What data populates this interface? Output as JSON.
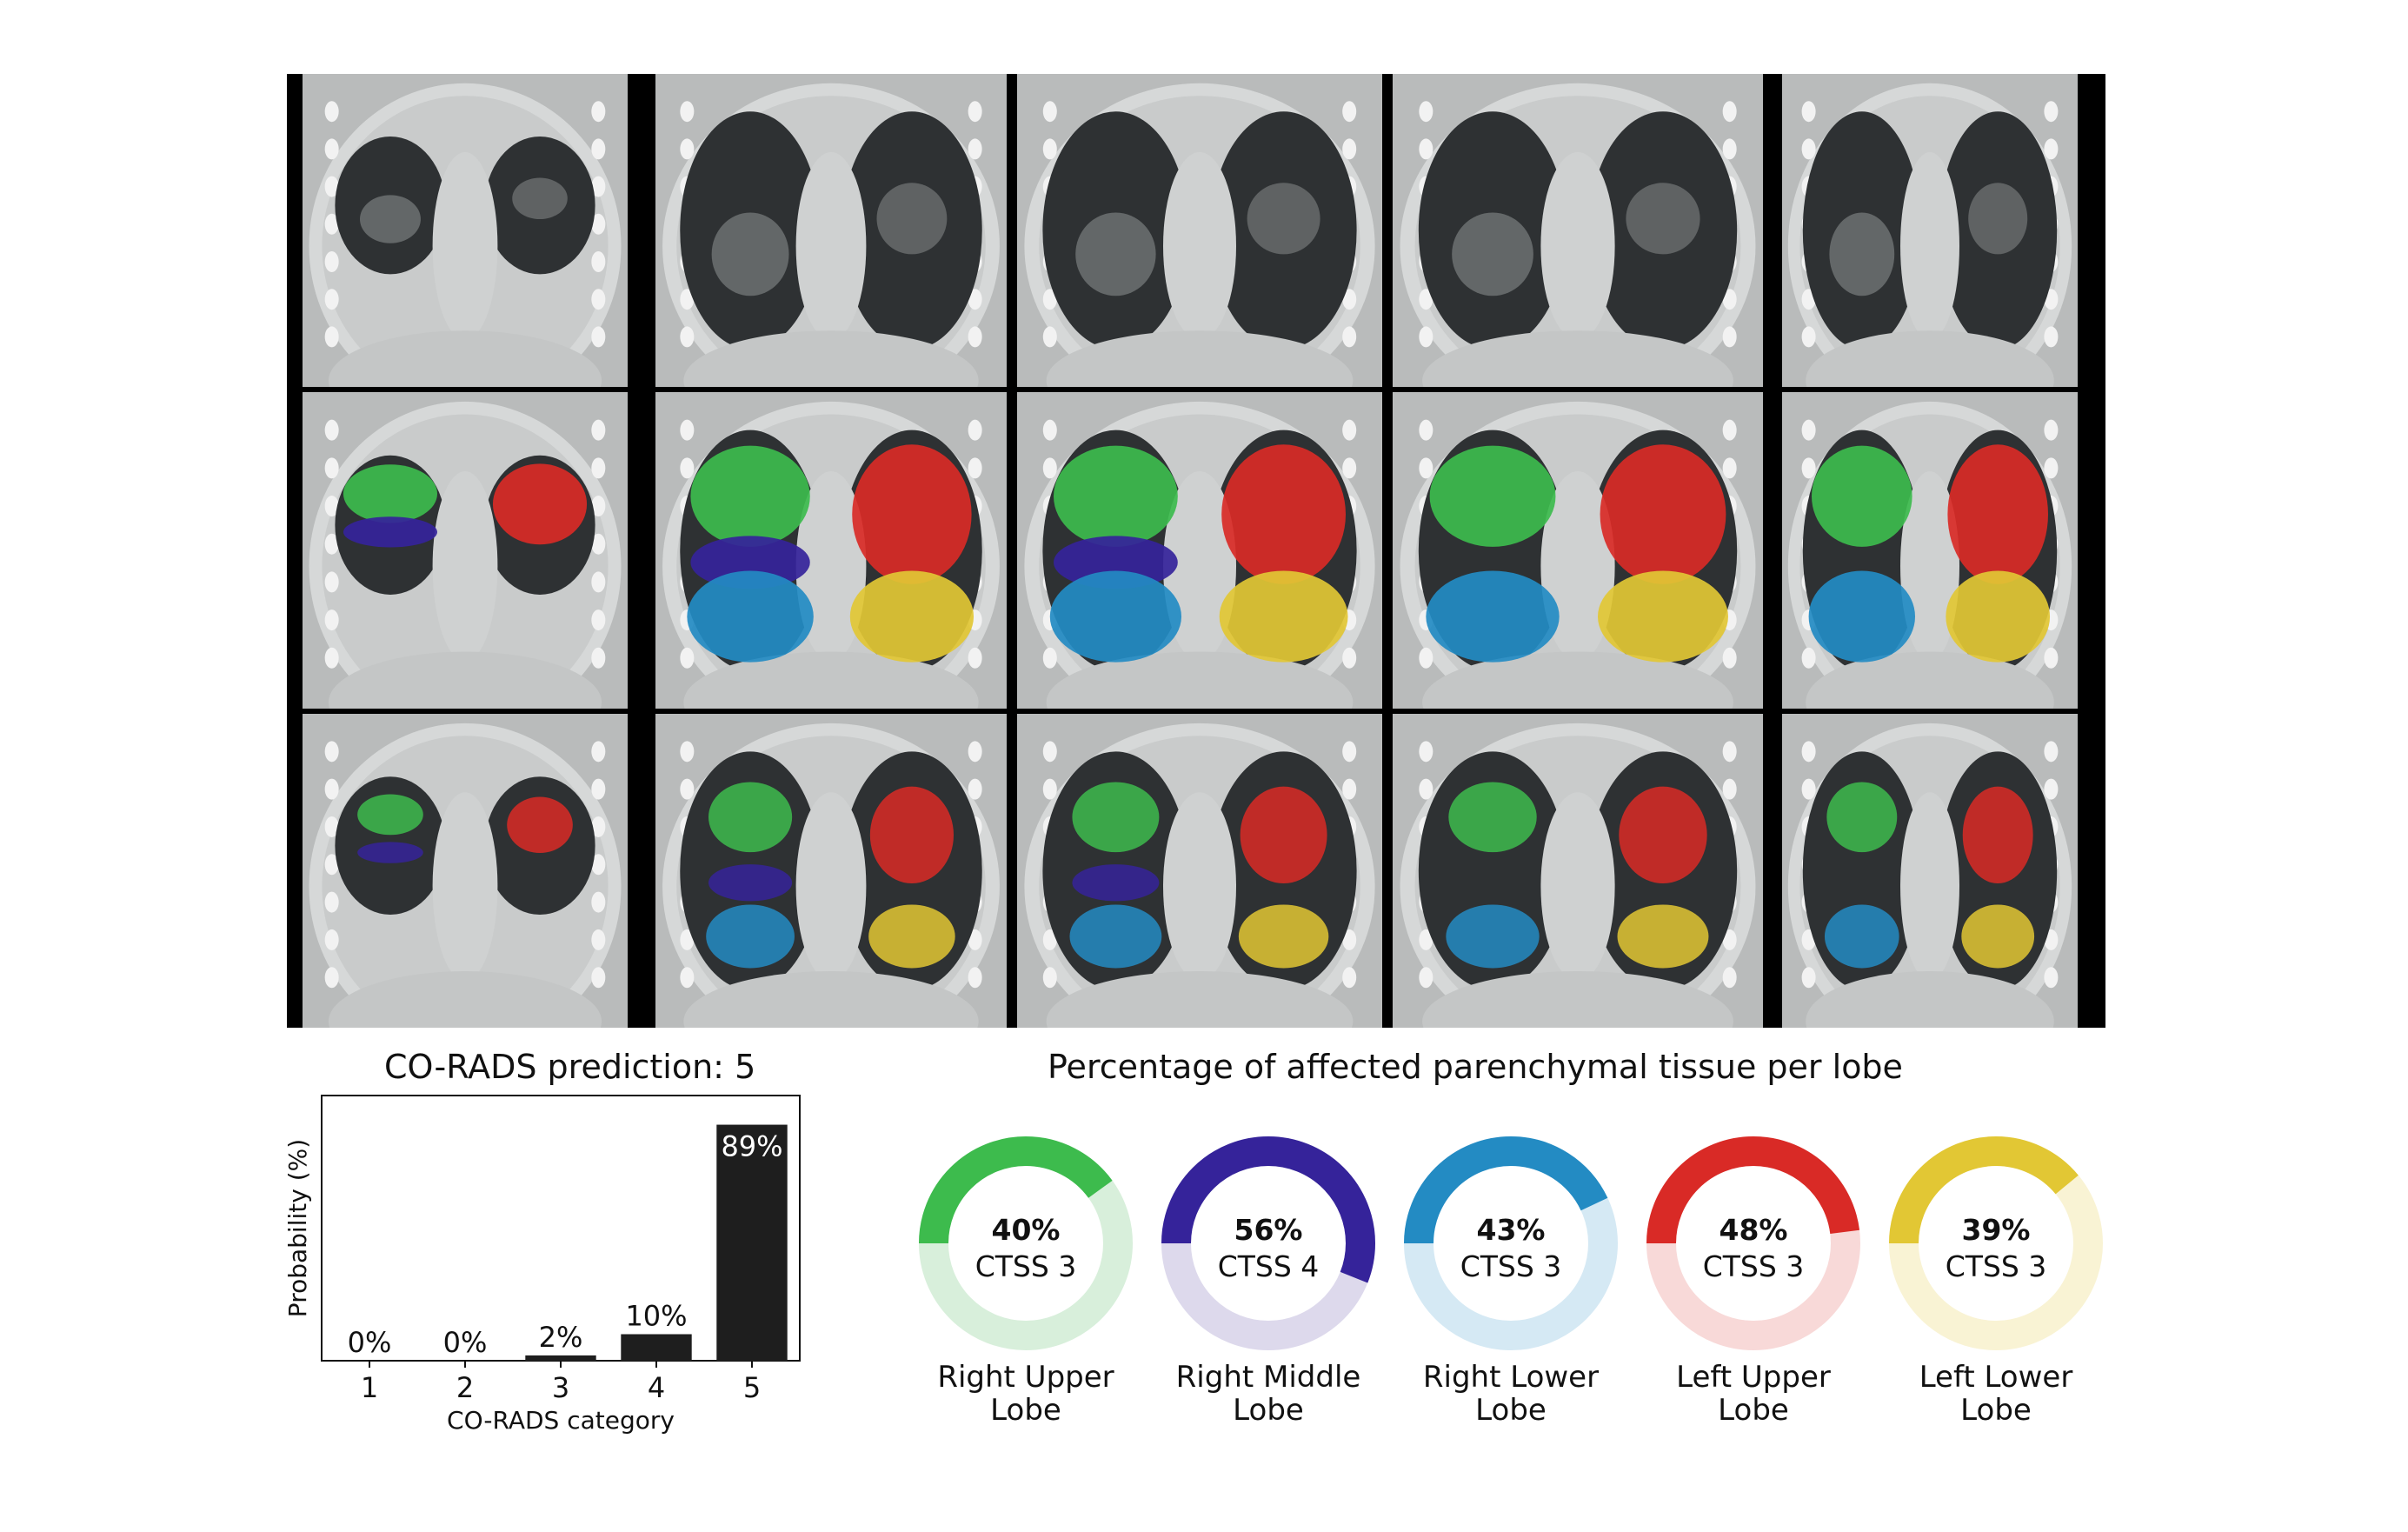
{
  "colors": {
    "right_upper": "#3dbb4d",
    "right_middle": "#35239a",
    "right_lower": "#238bc3",
    "left_upper": "#d92a26",
    "left_lower": "#e2c734",
    "bar": "#1e1e1e"
  },
  "ct_grid": {
    "rows": [
      "ct-scan",
      "lobe-segmentation",
      "lesion-segmentation"
    ],
    "columns": 5
  },
  "chart_data": [
    {
      "type": "bar",
      "title": "CO-RADS prediction: 5",
      "xlabel": "CO-RADS category",
      "ylabel": "Probability (%)",
      "categories": [
        "1",
        "2",
        "3",
        "4",
        "5"
      ],
      "values": [
        0,
        0,
        2,
        10,
        89
      ],
      "data_labels": [
        "0%",
        "0%",
        "2%",
        "10%",
        "89%"
      ],
      "ylim": [
        0,
        100
      ],
      "grid": false
    },
    {
      "type": "pie",
      "title": "Percentage of affected parenchymal tissue per lobe",
      "lobes": [
        {
          "name": "Right Upper Lobe",
          "name_lines": [
            "Right Upper",
            "Lobe"
          ],
          "percent": 40,
          "percent_label": "40%",
          "ctss": "CTSS 3",
          "color_key": "right_upper",
          "light": "#d8efdb"
        },
        {
          "name": "Right Middle Lobe",
          "name_lines": [
            "Right Middle",
            "Lobe"
          ],
          "percent": 56,
          "percent_label": "56%",
          "ctss": "CTSS 4",
          "color_key": "right_middle",
          "light": "#ddd9ec"
        },
        {
          "name": "Right Lower Lobe",
          "name_lines": [
            "Right Lower",
            "Lobe"
          ],
          "percent": 43,
          "percent_label": "43%",
          "ctss": "CTSS 3",
          "color_key": "right_lower",
          "light": "#d5e9f4"
        },
        {
          "name": "Left Upper Lobe",
          "name_lines": [
            "Left Upper",
            "Lobe"
          ],
          "percent": 48,
          "percent_label": "48%",
          "ctss": "CTSS 3",
          "color_key": "left_upper",
          "light": "#f8d9d8"
        },
        {
          "name": "Left Lower Lobe",
          "name_lines": [
            "Left Lower",
            "Lobe"
          ],
          "percent": 39,
          "percent_label": "39%",
          "ctss": "CTSS 3",
          "color_key": "left_lower",
          "light": "#f9f3d4"
        }
      ]
    }
  ]
}
